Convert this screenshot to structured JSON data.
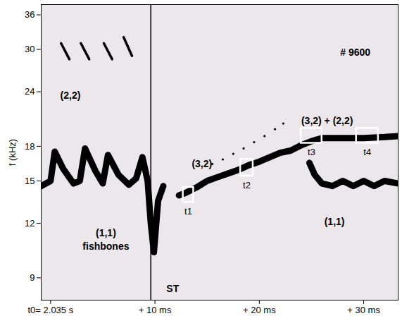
{
  "chart_data": {
    "type": "line",
    "ylabel": "f (kHz)",
    "log": "y",
    "grid": false,
    "xlim": [
      -0.9,
      33.3
    ],
    "xticks": [
      {
        "value": 0,
        "label": "t0= 2.035 s"
      },
      {
        "value": 10,
        "label": "+ 10 ms"
      },
      {
        "value": 20,
        "label": "+ 20 ms"
      },
      {
        "value": 30,
        "label": "+ 30 ms"
      }
    ],
    "ylim": [
      8,
      38
    ],
    "yticks": [
      9,
      12,
      15,
      18,
      24,
      30,
      36
    ],
    "crash_x": 9.6,
    "series": [
      {
        "type": "line",
        "color": "#000000",
        "line_style": "solid",
        "x": [
          -0.9,
          0.0,
          0.4,
          1.2,
          2.2,
          2.8,
          3.3,
          4.3,
          5.0,
          5.5,
          6.5,
          7.5,
          8.2,
          8.8,
          9.3,
          9.6,
          9.9,
          10.3,
          10.8
        ],
        "values": [
          14.6,
          15.0,
          17.5,
          16.0,
          14.8,
          15.0,
          17.8,
          15.8,
          14.8,
          17.2,
          15.5,
          14.7,
          15.2,
          17.0,
          15.0,
          12.0,
          10.3,
          13.5,
          14.6
        ]
      },
      {
        "type": "line",
        "color": "#000000",
        "line_style": "solid",
        "x": [
          12.3,
          13,
          14,
          15,
          16,
          17,
          18,
          19,
          20,
          21,
          22,
          23,
          24,
          25,
          26,
          28,
          30,
          32,
          33.3
        ],
        "values": [
          13.9,
          14.1,
          14.5,
          15.0,
          15.3,
          15.6,
          15.9,
          16.3,
          16.6,
          17.0,
          17.4,
          17.6,
          18.1,
          18.5,
          18.8,
          18.8,
          18.8,
          18.9,
          19.0
        ]
      },
      {
        "type": "line",
        "color": "#000000",
        "line_style": "solid",
        "x": [
          24.8,
          25.3,
          26,
          27,
          28,
          29,
          30,
          31,
          32,
          33.3
        ],
        "values": [
          16.5,
          15.5,
          14.8,
          14.6,
          15.0,
          14.6,
          15.0,
          14.6,
          15.0,
          14.8
        ]
      },
      {
        "type": "line",
        "color": "#000000",
        "line_style": "thin",
        "x": [
          1.0,
          1.8,
          2.2,
          2.9,
          3.7,
          4.1,
          5.1,
          5.9,
          6.3,
          7.0,
          7.8,
          8.2
        ],
        "values": [
          31,
          28.5,
          null,
          31,
          28.5,
          null,
          31,
          28.5,
          null,
          32,
          29,
          null
        ]
      },
      {
        "type": "scatter",
        "color": "#000000",
        "marker": "dot",
        "x": [
          15.5,
          16.5,
          17.5,
          18.5,
          19.5,
          20.5,
          21.5,
          22.3
        ],
        "values": [
          16.4,
          16.8,
          17.3,
          17.8,
          18.4,
          19.0,
          19.7,
          20.3
        ]
      }
    ],
    "boxes": [
      {
        "label": "t1",
        "x": [
          12.7,
          13.7
        ],
        "y": [
          13.4,
          14.5
        ]
      },
      {
        "label": "t2",
        "x": [
          18.2,
          19.4
        ],
        "y": [
          15.4,
          16.8
        ]
      },
      {
        "label": "t3",
        "x": [
          24.0,
          26.0
        ],
        "y": [
          18.3,
          19.8
        ]
      },
      {
        "label": "t4",
        "x": [
          29.3,
          31.4
        ],
        "y": [
          18.3,
          19.8
        ]
      }
    ],
    "annotations": [
      {
        "text": "(2,2)",
        "x": 1.9,
        "y": 23.5
      },
      {
        "text": "(1,1)",
        "x": 5.3,
        "y": 11.4
      },
      {
        "text": "fishbones",
        "x": 5.3,
        "y": 10.6
      },
      {
        "text": "ST",
        "x": 11.7,
        "y": 8.5
      },
      {
        "text": "(3,2)",
        "x": 14.5,
        "y": 16.4
      },
      {
        "text": "(3,2) + (2,2)",
        "x": 26.5,
        "y": 20.6
      },
      {
        "text": "(1,1)",
        "x": 27.2,
        "y": 12.1
      },
      {
        "text": "# 9600",
        "x": 29.2,
        "y": 29.5
      }
    ]
  }
}
